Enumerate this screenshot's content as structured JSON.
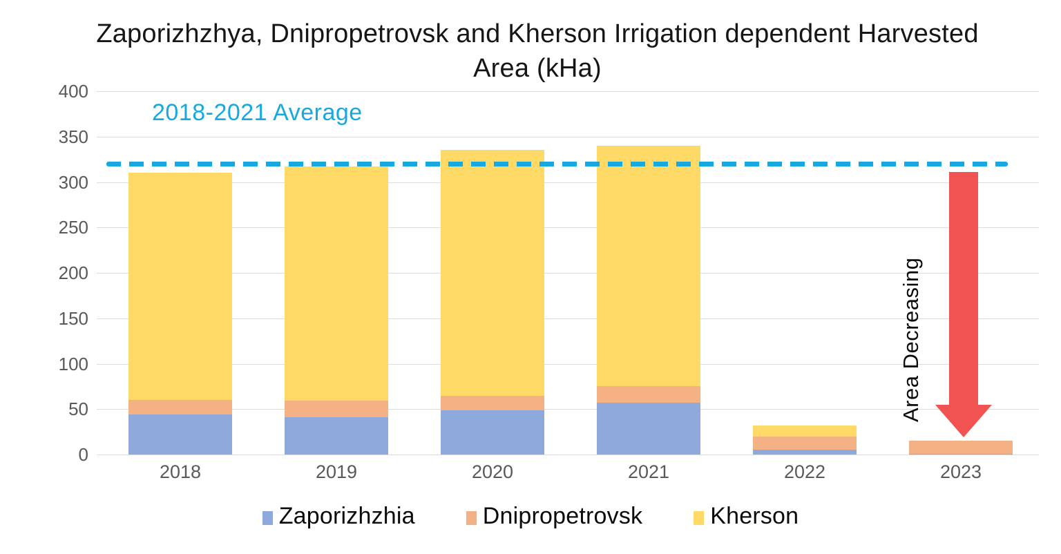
{
  "title": "Zaporizhzhya, Dnipropetrovsk and Kherson Irrigation dependent Harvested Area (kHa)",
  "annotations": {
    "average_label": "2018-2021 Average",
    "area_decreasing_label": "Area Decreasing"
  },
  "colors": {
    "zaporizhzhia_blue": "#8EA9DB",
    "dnipropetrovsk_orange": "#F4B183",
    "kherson_yellow": "#FFD966",
    "average_line_cyan": "#18A8E0",
    "arrow_red": "#F05351",
    "gridline_gray": "#DCDCDC",
    "axis_text_gray": "#595959",
    "title_black": "#161616"
  },
  "legend": {
    "items": [
      {
        "label": "Zaporizhzhia",
        "color": "#8EA9DB"
      },
      {
        "label": "Dnipropetrovsk",
        "color": "#F4B183"
      },
      {
        "label": "Kherson",
        "color": "#FFD966"
      }
    ]
  },
  "chart_data": {
    "type": "bar",
    "stacked": true,
    "title": "Zaporizhzhya, Dnipropetrovsk and Kherson Irrigation dependent Harvested Area (kHa)",
    "categories": [
      "2018",
      "2019",
      "2020",
      "2021",
      "2022",
      "2023"
    ],
    "series": [
      {
        "name": "Zaporizhzhia",
        "color": "#8EA9DB",
        "values": [
          44,
          41,
          49,
          57,
          5,
          1
        ]
      },
      {
        "name": "Dnipropetrovsk",
        "color": "#F4B183",
        "values": [
          16,
          18,
          16,
          18,
          15,
          14
        ]
      },
      {
        "name": "Kherson",
        "color": "#FFD966",
        "values": [
          250,
          258,
          270,
          265,
          12,
          0
        ]
      }
    ],
    "totals": [
      310,
      317,
      335,
      340,
      32,
      15
    ],
    "average_line": {
      "value": 320,
      "label": "2018-2021 Average",
      "color": "#18A8E0",
      "style": "dashed"
    },
    "annotation_arrow": {
      "label": "Area Decreasing",
      "color": "#F05351",
      "direction": "down",
      "near_category": "2023"
    },
    "xlabel": "",
    "ylabel": "",
    "ylim": [
      0,
      400
    ],
    "y_ticks": [
      0,
      50,
      100,
      150,
      200,
      250,
      300,
      350,
      400
    ],
    "grid": true,
    "legend_position": "bottom"
  }
}
